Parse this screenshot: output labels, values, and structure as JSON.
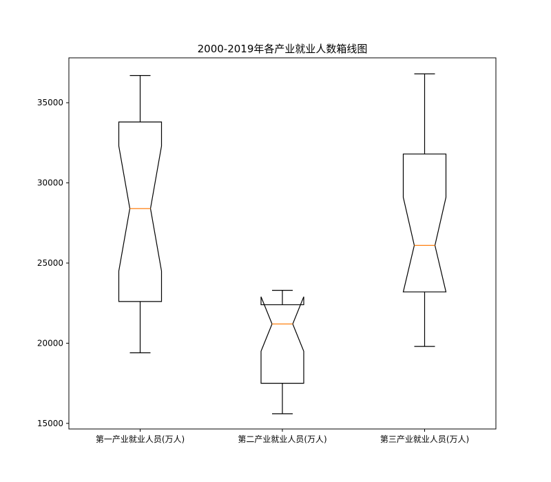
{
  "chart_data": {
    "type": "box",
    "title": "2000-2019年各产业就业人数箱线图",
    "xlabel": "",
    "ylabel": "",
    "ylim": [
      14650,
      37800
    ],
    "yticks": [
      15000,
      20000,
      25000,
      30000,
      35000
    ],
    "grid": false,
    "notched": true,
    "colors": {
      "box": "#000000",
      "median": "#ff7f0e",
      "axes": "#000000",
      "background": "#ffffff"
    },
    "categories": [
      "第一产业就业人员(万人)",
      "第二产业就业人员(万人)",
      "第三产业就业人员(万人)"
    ],
    "boxes": [
      {
        "whisker_low": 19400,
        "q1": 22600,
        "median": 28400,
        "q3": 33800,
        "whisker_high": 36700,
        "notch_low": 24500,
        "notch_high": 32300
      },
      {
        "whisker_low": 15600,
        "q1": 17500,
        "median": 21200,
        "q3": 22400,
        "whisker_high": 23300,
        "notch_low": 19500,
        "notch_high": 22900
      },
      {
        "whisker_low": 19800,
        "q1": 23200,
        "median": 26100,
        "q3": 31800,
        "whisker_high": 36800,
        "notch_low": 23200,
        "notch_high": 29100
      }
    ]
  }
}
